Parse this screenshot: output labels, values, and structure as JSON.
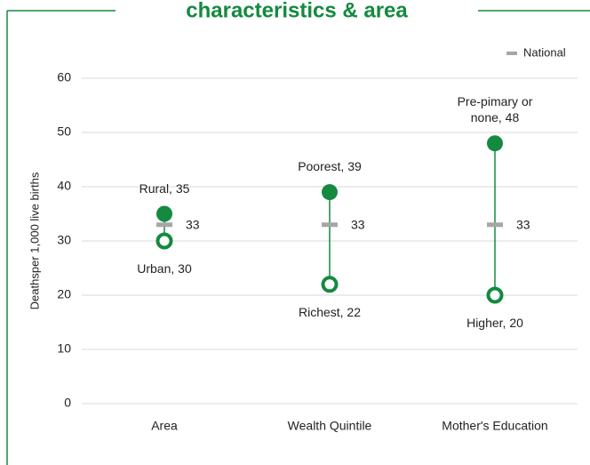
{
  "chart_data": {
    "type": "dumbbell",
    "title": "characteristics & area",
    "ylabel": "Deathsper 1,000 live births",
    "categories": [
      "Area",
      "Wealth Quintile",
      "Mother's Education"
    ],
    "series": [
      {
        "values": [
          35,
          39,
          48
        ],
        "value_labels": [
          "Rural, 35",
          "Poorest, 39",
          "Pre-pimary or none, 48"
        ],
        "color": "#138a3f",
        "marker": "filled"
      },
      {
        "values": [
          30,
          22,
          20
        ],
        "value_labels": [
          "Urban, 30",
          "Richest, 22",
          "Higher, 20"
        ],
        "color": "#138a3f",
        "marker": "hollow"
      },
      {
        "name": "National",
        "values": [
          33,
          33,
          33
        ],
        "color": "#a6a6a6",
        "marker": "dash"
      }
    ],
    "ylim": [
      0,
      60
    ],
    "yticks": [
      0,
      10,
      20,
      30,
      40,
      50,
      60
    ],
    "grid": true,
    "legend": "top-right"
  }
}
